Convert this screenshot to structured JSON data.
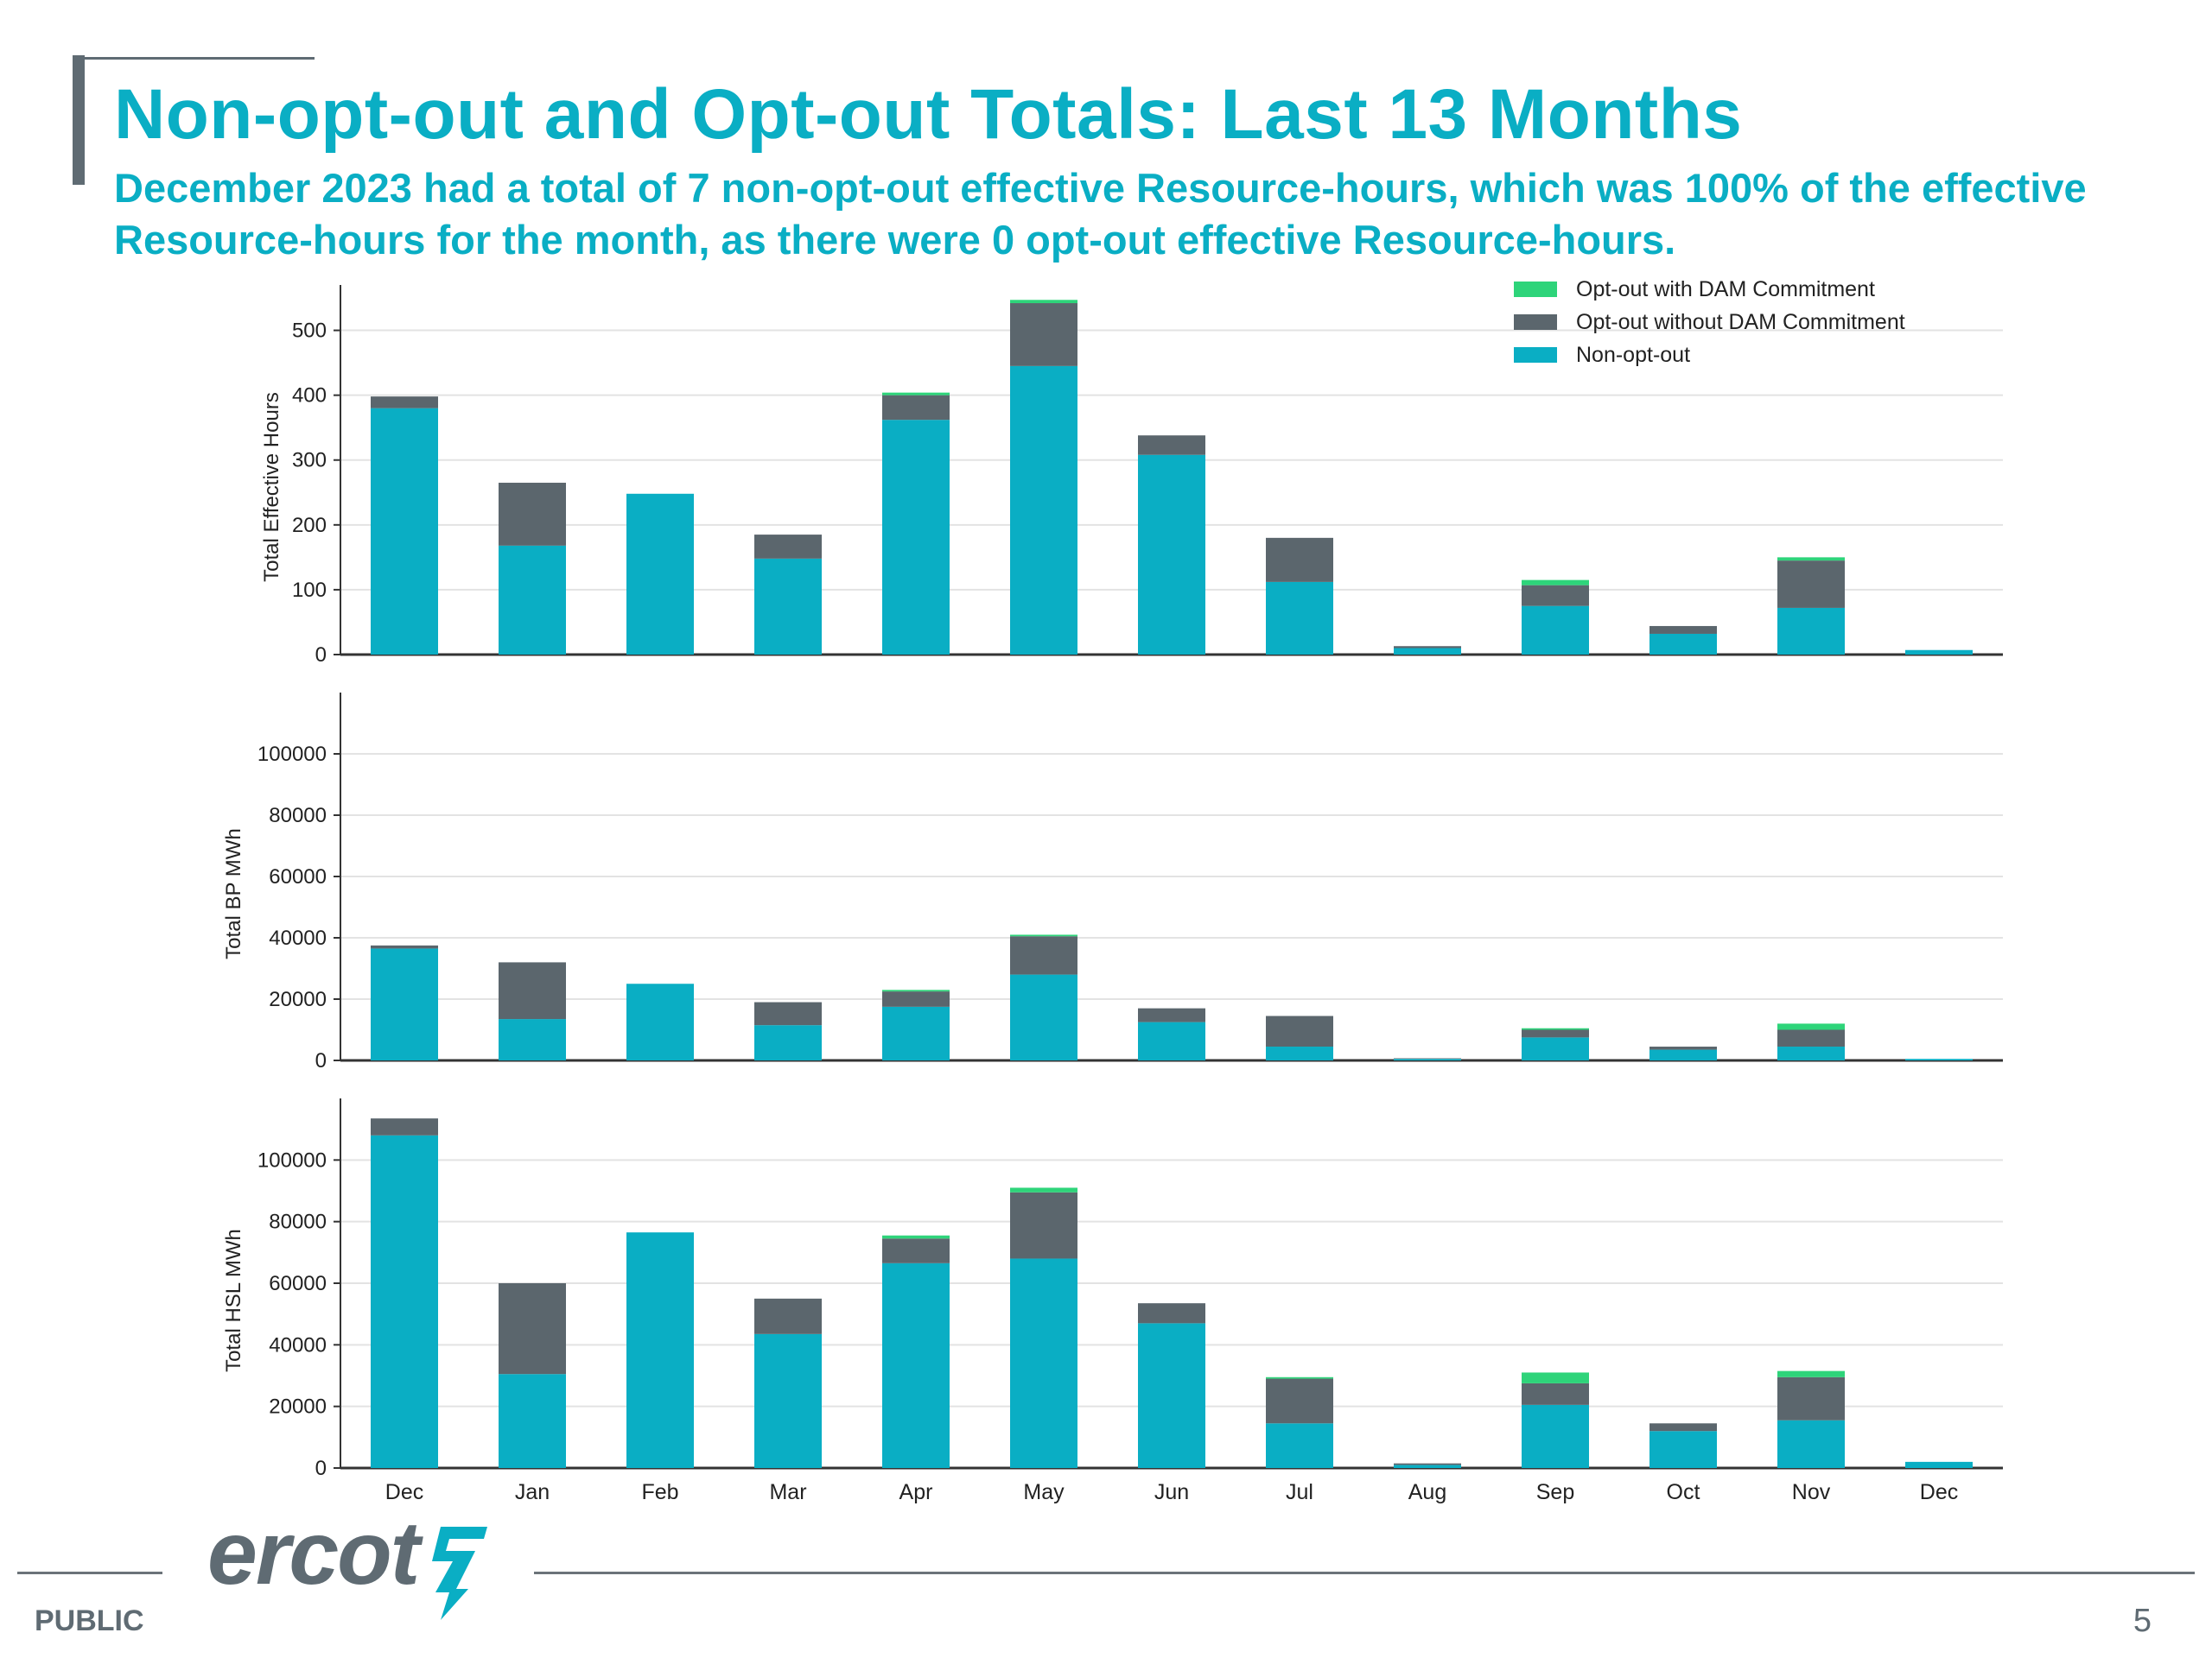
{
  "header": {
    "title": "Non-opt-out and Opt-out Totals: Last 13 Months",
    "subtitle": "December 2023 had a total of 7 non-opt-out effective Resource-hours, which was 100% of the effective Resource-hours for the month, as there were 0 opt-out effective Resource-hours."
  },
  "footer": {
    "classification": "PUBLIC",
    "page_number": "5",
    "logo_text": "ercot"
  },
  "colors": {
    "opt_out_with_dam": "#2ed47a",
    "opt_out_without_dam": "#5b666d",
    "non_opt_out": "#0aaec4",
    "grid": "#e3e3e3",
    "axis": "#333333"
  },
  "chart_data": [
    {
      "type": "bar",
      "stacked": true,
      "ylabel": "Total Effective Hours",
      "ylim": [
        0,
        570
      ],
      "yticks": [
        0,
        100,
        200,
        300,
        400,
        500
      ],
      "yticklabels": [
        "0",
        "100",
        "200",
        "300",
        "400",
        "500"
      ],
      "categories": [
        "Dec",
        "Jan",
        "Feb",
        "Mar",
        "Apr",
        "May",
        "Jun",
        "Jul",
        "Aug",
        "Sep",
        "Oct",
        "Nov",
        "Dec"
      ],
      "legend": {
        "position": "top-right",
        "entries": [
          "Opt-out with DAM Commitment",
          "Opt-out without DAM Commitment",
          "Non-opt-out"
        ]
      },
      "grid": true,
      "series": [
        {
          "name": "Non-opt-out",
          "values": [
            380,
            168,
            248,
            148,
            362,
            445,
            308,
            112,
            10,
            75,
            32,
            72,
            7
          ]
        },
        {
          "name": "Opt-out without DAM Commitment",
          "values": [
            18,
            97,
            0,
            37,
            38,
            97,
            30,
            68,
            3,
            32,
            12,
            73,
            0
          ]
        },
        {
          "name": "Opt-out with DAM Commitment",
          "values": [
            0,
            0,
            0,
            0,
            4,
            5,
            0,
            0,
            0,
            8,
            0,
            5,
            0
          ]
        }
      ]
    },
    {
      "type": "bar",
      "stacked": true,
      "ylabel": "Total BP MWh",
      "ylim": [
        0,
        120000
      ],
      "yticks": [
        0,
        20000,
        40000,
        60000,
        80000,
        100000
      ],
      "yticklabels": [
        "0",
        "20000",
        "40000",
        "60000",
        "80000",
        "100000"
      ],
      "categories": [
        "Dec",
        "Jan",
        "Feb",
        "Mar",
        "Apr",
        "May",
        "Jun",
        "Jul",
        "Aug",
        "Sep",
        "Oct",
        "Nov",
        "Dec"
      ],
      "grid": true,
      "series": [
        {
          "name": "Non-opt-out",
          "values": [
            36500,
            13500,
            25000,
            11500,
            17500,
            28000,
            12500,
            4500,
            500,
            7500,
            3500,
            4500,
            500
          ]
        },
        {
          "name": "Opt-out without DAM Commitment",
          "values": [
            1000,
            18500,
            0,
            7500,
            5000,
            12500,
            4500,
            10000,
            200,
            2500,
            1000,
            5500,
            0
          ]
        },
        {
          "name": "Opt-out with DAM Commitment",
          "values": [
            0,
            0,
            0,
            0,
            500,
            500,
            0,
            0,
            0,
            500,
            0,
            2000,
            0
          ]
        }
      ]
    },
    {
      "type": "bar",
      "stacked": true,
      "ylabel": "Total HSL MWh",
      "ylim": [
        0,
        120000
      ],
      "yticks": [
        0,
        20000,
        40000,
        60000,
        80000,
        100000
      ],
      "yticklabels": [
        "0",
        "20000",
        "40000",
        "60000",
        "80000",
        "100000"
      ],
      "categories": [
        "Dec",
        "Jan",
        "Feb",
        "Mar",
        "Apr",
        "May",
        "Jun",
        "Jul",
        "Aug",
        "Sep",
        "Oct",
        "Nov",
        "Dec"
      ],
      "grid": true,
      "series": [
        {
          "name": "Non-opt-out",
          "values": [
            108000,
            30500,
            76500,
            43500,
            66500,
            68000,
            47000,
            14500,
            1000,
            20500,
            12000,
            15500,
            2000
          ]
        },
        {
          "name": "Opt-out without DAM Commitment",
          "values": [
            5500,
            29500,
            0,
            11500,
            8000,
            21500,
            6500,
            14500,
            500,
            7000,
            2500,
            14000,
            0
          ]
        },
        {
          "name": "Opt-out with DAM Commitment",
          "values": [
            0,
            0,
            0,
            0,
            1000,
            1500,
            0,
            500,
            0,
            3500,
            0,
            2000,
            0
          ]
        }
      ]
    }
  ]
}
